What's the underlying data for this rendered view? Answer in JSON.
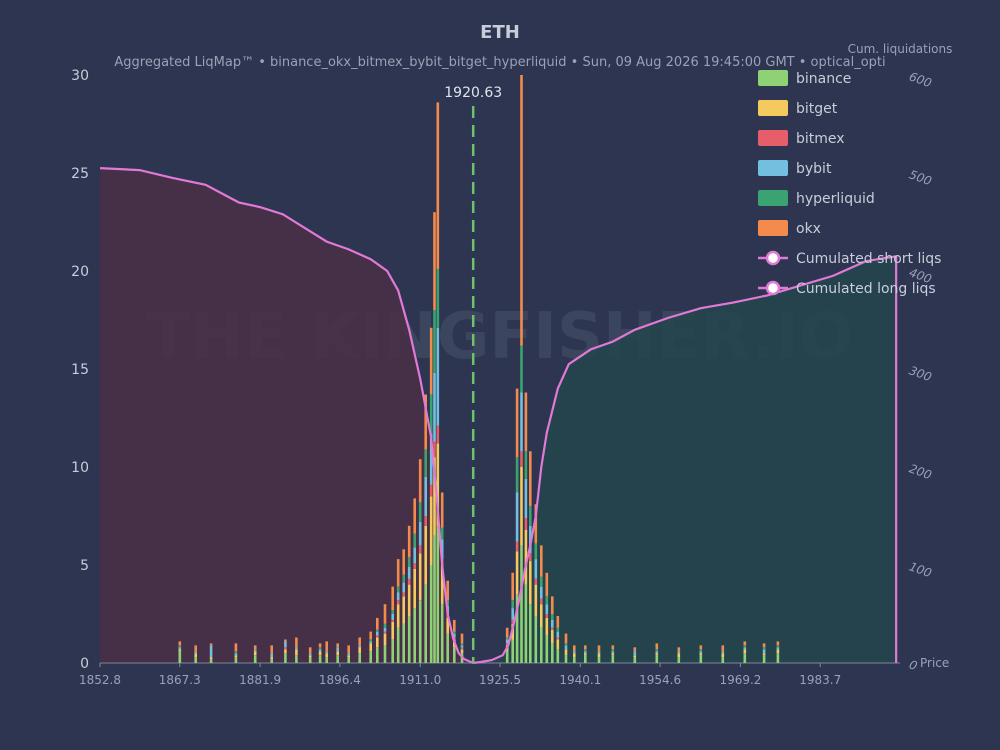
{
  "chart_data": {
    "type": "bar",
    "title": "ETH",
    "subtitle": "Aggregated LiqMap™  •  binance_okx_bitmex_bybit_bitget_hyperliquid  •  Sun, 09 Aug 2026 19:45:00 GMT  •  optical_opti",
    "xlabel": "Price",
    "y2label": "Cum. liquidations",
    "xlim": [
      1852.8,
      1998.2
    ],
    "ylim": [
      0,
      30
    ],
    "y2lim": [
      0,
      600
    ],
    "x_ticks": [
      "1852.8",
      "1867.3",
      "1881.9",
      "1896.4",
      "1911.0",
      "1925.5",
      "1940.1",
      "1954.6",
      "1969.2",
      "1983.7"
    ],
    "y_ticks": [
      "0",
      "5",
      "10",
      "15",
      "20",
      "25",
      "30"
    ],
    "y2_ticks": [
      "0",
      "100",
      "200",
      "300",
      "400",
      "500",
      "600"
    ],
    "current_price": 1920.63,
    "current_price_label": "1920.63",
    "watermark": "THE KINGFISHER.IO",
    "legend_position": "top-right",
    "exchanges": [
      {
        "name": "binance",
        "color": "#8fd175"
      },
      {
        "name": "bitget",
        "color": "#f4c95d"
      },
      {
        "name": "bitmex",
        "color": "#e85d6a"
      },
      {
        "name": "bybit",
        "color": "#73bfe0"
      },
      {
        "name": "hyperliquid",
        "color": "#3aa371"
      },
      {
        "name": "okx",
        "color": "#f48a4b"
      }
    ],
    "cumulative_legend": [
      {
        "name": "Cumulated short liqs",
        "color": "#e07ad6"
      },
      {
        "name": "Cumulated long liqs",
        "color": "#e07ad6"
      }
    ],
    "bars": [
      {
        "price": 1867.3,
        "values": [
          0.6,
          0.1,
          0,
          0.1,
          0.1,
          0.2
        ]
      },
      {
        "price": 1870.2,
        "values": [
          0.3,
          0.2,
          0,
          0.1,
          0,
          0.3
        ]
      },
      {
        "price": 1873.0,
        "values": [
          0.2,
          0.1,
          0,
          0.6,
          0,
          0.1
        ]
      },
      {
        "price": 1877.5,
        "values": [
          0.3,
          0.1,
          0,
          0.1,
          0.1,
          0.4
        ]
      },
      {
        "price": 1881.0,
        "values": [
          0.4,
          0.2,
          0,
          0.1,
          0,
          0.2
        ]
      },
      {
        "price": 1884.0,
        "values": [
          0.2,
          0.1,
          0,
          0.2,
          0,
          0.4
        ]
      },
      {
        "price": 1886.5,
        "values": [
          0.5,
          0.2,
          0.1,
          0.3,
          0,
          0.1
        ]
      },
      {
        "price": 1888.5,
        "values": [
          0.4,
          0.3,
          0,
          0.1,
          0,
          0.5
        ]
      },
      {
        "price": 1891.0,
        "values": [
          0.3,
          0.1,
          0,
          0.1,
          0,
          0.3
        ]
      },
      {
        "price": 1892.8,
        "values": [
          0.4,
          0.2,
          0,
          0.1,
          0.1,
          0.2
        ]
      },
      {
        "price": 1894.0,
        "values": [
          0.3,
          0.2,
          0,
          0.1,
          0,
          0.5
        ]
      },
      {
        "price": 1896.0,
        "values": [
          0.4,
          0.2,
          0,
          0.2,
          0,
          0.2
        ]
      },
      {
        "price": 1898.0,
        "values": [
          0.3,
          0.1,
          0,
          0.1,
          0,
          0.4
        ]
      },
      {
        "price": 1900.0,
        "values": [
          0.5,
          0.3,
          0,
          0.1,
          0,
          0.4
        ]
      },
      {
        "price": 1902.0,
        "values": [
          0.6,
          0.4,
          0,
          0.1,
          0.1,
          0.4
        ]
      },
      {
        "price": 1903.2,
        "values": [
          0.8,
          0.5,
          0.1,
          0.2,
          0.1,
          0.6
        ]
      },
      {
        "price": 1904.6,
        "values": [
          0.9,
          0.6,
          0.1,
          0.2,
          0.2,
          1.0
        ]
      },
      {
        "price": 1906.0,
        "values": [
          1.2,
          0.9,
          0.1,
          0.3,
          0.2,
          1.2
        ]
      },
      {
        "price": 1907.0,
        "values": [
          1.8,
          1.2,
          0.2,
          0.4,
          0.3,
          1.4
        ]
      },
      {
        "price": 1908.0,
        "values": [
          2.0,
          1.4,
          0.2,
          0.5,
          0.4,
          1.3
        ]
      },
      {
        "price": 1909.0,
        "values": [
          2.4,
          1.6,
          0.3,
          0.6,
          0.5,
          1.6
        ]
      },
      {
        "price": 1910.0,
        "values": [
          2.8,
          2.0,
          0.3,
          0.8,
          0.7,
          1.8
        ]
      },
      {
        "price": 1911.0,
        "values": [
          3.2,
          2.4,
          0.4,
          1.2,
          1.0,
          2.2
        ]
      },
      {
        "price": 1912.0,
        "values": [
          4.0,
          3.0,
          0.5,
          2.0,
          1.4,
          2.8
        ]
      },
      {
        "price": 1913.0,
        "values": [
          5.0,
          3.5,
          0.6,
          2.6,
          2.0,
          3.4
        ]
      },
      {
        "price": 1913.6,
        "values": [
          6.5,
          4.0,
          0.8,
          3.5,
          3.2,
          5.0
        ]
      },
      {
        "price": 1914.2,
        "values": [
          7.0,
          4.2,
          0.9,
          5.0,
          3.0,
          8.5
        ]
      },
      {
        "price": 1915.0,
        "values": [
          3.0,
          2.0,
          0.3,
          1.0,
          0.6,
          1.8
        ]
      },
      {
        "price": 1916.0,
        "values": [
          1.5,
          0.8,
          0.2,
          0.4,
          0.3,
          1.0
        ]
      },
      {
        "price": 1917.2,
        "values": [
          0.8,
          0.4,
          0.1,
          0.2,
          0.1,
          0.6
        ]
      },
      {
        "price": 1918.6,
        "values": [
          0.5,
          0.2,
          0.1,
          0.1,
          0.1,
          0.5
        ]
      },
      {
        "price": 1926.8,
        "values": [
          0.6,
          0.3,
          0.1,
          0.2,
          0.1,
          0.5
        ]
      },
      {
        "price": 1927.8,
        "values": [
          1.2,
          0.8,
          0.2,
          0.6,
          0.4,
          1.4
        ]
      },
      {
        "price": 1928.6,
        "values": [
          3.5,
          2.2,
          0.5,
          2.5,
          1.8,
          3.5
        ]
      },
      {
        "price": 1929.4,
        "values": [
          6.0,
          4.0,
          0.8,
          3.0,
          2.4,
          13.8
        ]
      },
      {
        "price": 1930.2,
        "values": [
          4.0,
          2.8,
          0.6,
          2.0,
          1.4,
          3.0
        ]
      },
      {
        "price": 1931.0,
        "values": [
          3.0,
          2.2,
          0.4,
          1.4,
          1.0,
          2.8
        ]
      },
      {
        "price": 1932.0,
        "values": [
          2.4,
          1.6,
          0.3,
          1.0,
          0.8,
          2.0
        ]
      },
      {
        "price": 1933.0,
        "values": [
          1.8,
          1.2,
          0.3,
          0.6,
          0.5,
          1.6
        ]
      },
      {
        "price": 1934.0,
        "values": [
          1.4,
          0.9,
          0.2,
          0.5,
          0.4,
          1.2
        ]
      },
      {
        "price": 1935.0,
        "values": [
          1.0,
          0.7,
          0.1,
          0.4,
          0.3,
          0.9
        ]
      },
      {
        "price": 1936.0,
        "values": [
          0.7,
          0.5,
          0.1,
          0.3,
          0.2,
          0.6
        ]
      },
      {
        "price": 1937.5,
        "values": [
          0.4,
          0.3,
          0,
          0.2,
          0.1,
          0.5
        ]
      },
      {
        "price": 1939.0,
        "values": [
          0.3,
          0.2,
          0,
          0.1,
          0,
          0.3
        ]
      },
      {
        "price": 1941.0,
        "values": [
          0.4,
          0.1,
          0,
          0.1,
          0.1,
          0.2
        ]
      },
      {
        "price": 1943.5,
        "values": [
          0.3,
          0.2,
          0,
          0.1,
          0,
          0.3
        ]
      },
      {
        "price": 1946.0,
        "values": [
          0.4,
          0.1,
          0,
          0.1,
          0.1,
          0.2
        ]
      },
      {
        "price": 1950.0,
        "values": [
          0.3,
          0.1,
          0,
          0.2,
          0,
          0.2
        ]
      },
      {
        "price": 1954.0,
        "values": [
          0.4,
          0.1,
          0,
          0.1,
          0.1,
          0.3
        ]
      },
      {
        "price": 1958.0,
        "values": [
          0.3,
          0.2,
          0,
          0.1,
          0,
          0.2
        ]
      },
      {
        "price": 1962.0,
        "values": [
          0.4,
          0.1,
          0,
          0.1,
          0.1,
          0.2
        ]
      },
      {
        "price": 1966.0,
        "values": [
          0.3,
          0.2,
          0,
          0.1,
          0,
          0.3
        ]
      },
      {
        "price": 1970.0,
        "values": [
          0.5,
          0.2,
          0,
          0.1,
          0.1,
          0.2
        ]
      },
      {
        "price": 1973.5,
        "values": [
          0.4,
          0.1,
          0,
          0.2,
          0.1,
          0.2
        ]
      },
      {
        "price": 1976.0,
        "values": [
          0.5,
          0.2,
          0,
          0.1,
          0.1,
          0.2
        ]
      }
    ],
    "cumulative_short": {
      "x": [
        1852.8,
        1860,
        1866,
        1872,
        1878,
        1882,
        1886,
        1890,
        1894,
        1898,
        1902,
        1905,
        1907,
        1909,
        1911,
        1913,
        1914,
        1915,
        1916,
        1917,
        1918,
        1919,
        1920.63
      ],
      "y": [
        505,
        503,
        495,
        488,
        470,
        465,
        458,
        444,
        430,
        422,
        412,
        400,
        380,
        340,
        290,
        230,
        170,
        100,
        50,
        25,
        10,
        4,
        0
      ]
    },
    "cumulative_long": {
      "x": [
        1920.63,
        1922,
        1924,
        1926,
        1927,
        1928,
        1929,
        1930,
        1931,
        1932,
        1933,
        1934,
        1936,
        1938,
        1942,
        1946,
        1950,
        1956,
        1962,
        1968,
        1974,
        1980,
        1986,
        1992,
        1997.5
      ],
      "y": [
        0,
        1,
        3,
        8,
        18,
        40,
        65,
        95,
        120,
        150,
        200,
        235,
        280,
        305,
        320,
        328,
        340,
        352,
        362,
        368,
        375,
        385,
        395,
        410,
        415
      ]
    }
  }
}
